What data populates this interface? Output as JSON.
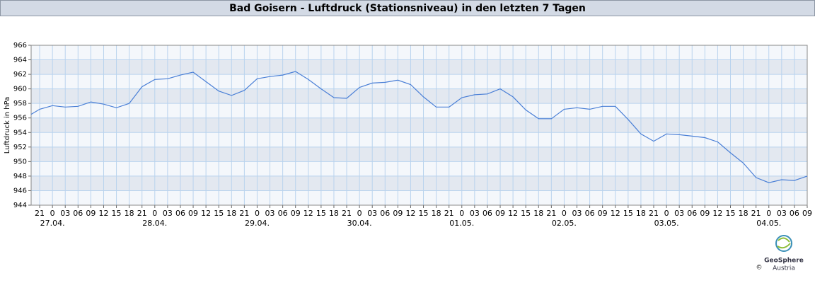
{
  "chart_data": {
    "type": "line",
    "title": "Bad Goisern - Luftdruck (Stationsniveau) in den letzten 7 Tagen",
    "y_label": "Luftdruck in hPa",
    "color": "#4a7fd6",
    "x": [
      -5,
      -3,
      0,
      3,
      6,
      9,
      12,
      15,
      18,
      21,
      24,
      27,
      30,
      33,
      36,
      39,
      42,
      45,
      48,
      51,
      54,
      57,
      60,
      63,
      66,
      69,
      72,
      75,
      78,
      81,
      84,
      87,
      90,
      93,
      96,
      99,
      102,
      105,
      108,
      111,
      114,
      117,
      120,
      123,
      126,
      129,
      132,
      135,
      138,
      141,
      144,
      147,
      150,
      153,
      156,
      159,
      162,
      165,
      168,
      171,
      174,
      177
    ],
    "values": [
      956.5,
      957.2,
      957.7,
      957.5,
      957.6,
      958.2,
      957.9,
      957.4,
      958.0,
      960.3,
      961.3,
      961.4,
      961.9,
      962.3,
      961.0,
      959.7,
      959.1,
      959.8,
      961.4,
      961.7,
      961.9,
      962.4,
      961.3,
      960.0,
      958.8,
      958.7,
      960.2,
      960.8,
      960.9,
      961.2,
      960.6,
      958.9,
      957.5,
      957.5,
      958.8,
      959.2,
      959.3,
      960.0,
      958.9,
      957.1,
      955.9,
      955.9,
      957.2,
      957.4,
      957.2,
      957.6,
      957.6,
      955.8,
      953.8,
      952.8,
      953.8,
      953.7,
      953.5,
      953.3,
      952.7,
      951.2,
      949.8,
      947.8,
      947.1,
      947.5,
      947.4,
      948.0
    ],
    "xlim": [
      -5,
      177
    ],
    "ylim": [
      944,
      966
    ],
    "yticks": [
      944,
      946,
      948,
      950,
      952,
      954,
      956,
      958,
      960,
      962,
      964,
      966
    ],
    "xticks": [
      {
        "value": -3,
        "label": "21"
      },
      {
        "value": 0,
        "label": "0"
      },
      {
        "value": 3,
        "label": "03"
      },
      {
        "value": 6,
        "label": "06"
      },
      {
        "value": 9,
        "label": "09"
      },
      {
        "value": 12,
        "label": "12"
      },
      {
        "value": 15,
        "label": "15"
      },
      {
        "value": 18,
        "label": "18"
      },
      {
        "value": 21,
        "label": "21"
      },
      {
        "value": 24,
        "label": "0"
      },
      {
        "value": 27,
        "label": "03"
      },
      {
        "value": 30,
        "label": "06"
      },
      {
        "value": 33,
        "label": "09"
      },
      {
        "value": 36,
        "label": "12"
      },
      {
        "value": 39,
        "label": "15"
      },
      {
        "value": 42,
        "label": "18"
      },
      {
        "value": 45,
        "label": "21"
      },
      {
        "value": 48,
        "label": "0"
      },
      {
        "value": 51,
        "label": "03"
      },
      {
        "value": 54,
        "label": "06"
      },
      {
        "value": 57,
        "label": "09"
      },
      {
        "value": 60,
        "label": "12"
      },
      {
        "value": 63,
        "label": "15"
      },
      {
        "value": 66,
        "label": "18"
      },
      {
        "value": 69,
        "label": "21"
      },
      {
        "value": 72,
        "label": "0"
      },
      {
        "value": 75,
        "label": "03"
      },
      {
        "value": 78,
        "label": "06"
      },
      {
        "value": 81,
        "label": "09"
      },
      {
        "value": 84,
        "label": "12"
      },
      {
        "value": 87,
        "label": "15"
      },
      {
        "value": 90,
        "label": "18"
      },
      {
        "value": 93,
        "label": "21"
      },
      {
        "value": 96,
        "label": "0"
      },
      {
        "value": 99,
        "label": "03"
      },
      {
        "value": 102,
        "label": "06"
      },
      {
        "value": 105,
        "label": "09"
      },
      {
        "value": 108,
        "label": "12"
      },
      {
        "value": 111,
        "label": "15"
      },
      {
        "value": 114,
        "label": "18"
      },
      {
        "value": 117,
        "label": "21"
      },
      {
        "value": 120,
        "label": "0"
      },
      {
        "value": 123,
        "label": "03"
      },
      {
        "value": 126,
        "label": "06"
      },
      {
        "value": 129,
        "label": "09"
      },
      {
        "value": 132,
        "label": "12"
      },
      {
        "value": 135,
        "label": "15"
      },
      {
        "value": 138,
        "label": "18"
      },
      {
        "value": 141,
        "label": "21"
      },
      {
        "value": 144,
        "label": "0"
      },
      {
        "value": 147,
        "label": "03"
      },
      {
        "value": 150,
        "label": "06"
      },
      {
        "value": 153,
        "label": "09"
      },
      {
        "value": 156,
        "label": "12"
      },
      {
        "value": 159,
        "label": "15"
      },
      {
        "value": 162,
        "label": "18"
      },
      {
        "value": 165,
        "label": "21"
      },
      {
        "value": 168,
        "label": "0"
      },
      {
        "value": 171,
        "label": "03"
      },
      {
        "value": 174,
        "label": "06"
      },
      {
        "value": 177,
        "label": "09"
      }
    ],
    "date_ticks": [
      {
        "value": 0,
        "label": "27.04."
      },
      {
        "value": 24,
        "label": "28.04."
      },
      {
        "value": 48,
        "label": "29.04."
      },
      {
        "value": 72,
        "label": "30.04."
      },
      {
        "value": 96,
        "label": "01.05."
      },
      {
        "value": 120,
        "label": "02.05."
      },
      {
        "value": 144,
        "label": "03.05."
      },
      {
        "value": 168,
        "label": "04.05."
      }
    ],
    "grid": true,
    "logo": {
      "line1": "GeoSphere",
      "line2": "Austria",
      "copyright": "©"
    }
  }
}
